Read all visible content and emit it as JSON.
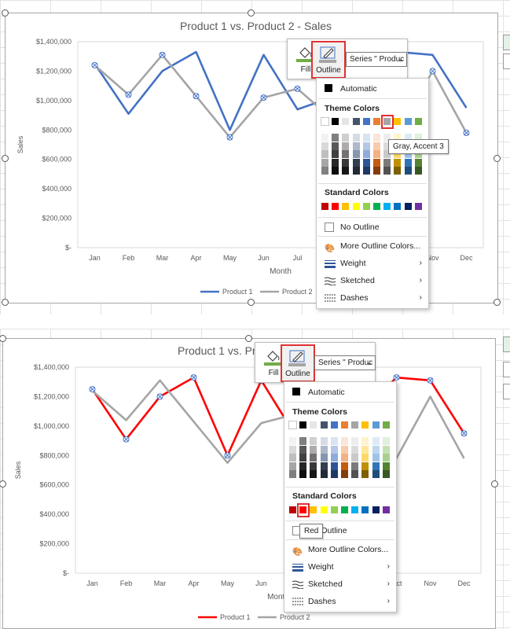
{
  "chart": {
    "title": "Product 1 vs. Product 2 - Sales",
    "ylabel": "Sales",
    "xlabel": "Month",
    "months": [
      "Jan",
      "Feb",
      "Mar",
      "Apr",
      "May",
      "Jun",
      "Jul",
      "Aug",
      "Sep",
      "Oct",
      "Nov",
      "Dec"
    ],
    "yticks": [
      "$1,400,000",
      "$1,200,000",
      "$1,000,000",
      "$800,000",
      "$600,000",
      "$400,000",
      "$200,000",
      "$-"
    ]
  },
  "chart_data": [
    {
      "type": "line",
      "title": "Product 1 vs. Product 2 - Sales",
      "xlabel": "Month",
      "ylabel": "Sales",
      "ylim": [
        0,
        1400000
      ],
      "categories": [
        "Jan",
        "Feb",
        "Mar",
        "Apr",
        "May",
        "Jun",
        "Jul",
        "Aug",
        "Sep",
        "Oct",
        "Nov",
        "Dec"
      ],
      "series": [
        {
          "name": "Product 1",
          "color": "#4472c4",
          "values": [
            1250000,
            910000,
            1200000,
            1330000,
            800000,
            1310000,
            940000,
            1020000,
            1100000,
            1330000,
            1310000,
            950000
          ]
        },
        {
          "name": "Product 2",
          "color": "#a5a5a5",
          "values": [
            1240000,
            1040000,
            1310000,
            1030000,
            750000,
            1020000,
            1080000,
            880000,
            950000,
            780000,
            1200000,
            780000
          ]
        }
      ],
      "legend": "bottom",
      "grid": false
    },
    {
      "type": "line",
      "title": "Product 1 vs. Product 2 - Sales",
      "xlabel": "Month",
      "ylabel": "Sales",
      "ylim": [
        0,
        1400000
      ],
      "categories": [
        "Jan",
        "Feb",
        "Mar",
        "Apr",
        "May",
        "Jun",
        "Jul",
        "Aug",
        "Sep",
        "Oct",
        "Nov",
        "Dec"
      ],
      "series": [
        {
          "name": "Product 1",
          "color": "#ff0000",
          "values": [
            1250000,
            910000,
            1200000,
            1330000,
            800000,
            1310000,
            940000,
            1020000,
            1100000,
            1330000,
            1310000,
            950000
          ]
        },
        {
          "name": "Product 2",
          "color": "#a5a5a5",
          "values": [
            1240000,
            1040000,
            1310000,
            1030000,
            750000,
            1020000,
            1080000,
            880000,
            950000,
            780000,
            1200000,
            780000
          ]
        }
      ],
      "legend": "bottom",
      "grid": false
    }
  ],
  "toolbar": {
    "fill_label": "Fill",
    "outline_label": "Outline",
    "series_label": "Series \" Produc"
  },
  "menu": {
    "automatic": "Automatic",
    "theme_colors": "Theme Colors",
    "standard_colors": "Standard Colors",
    "no_outline": "No Outline",
    "more_colors": "More Outline Colors...",
    "weight": "Weight",
    "sketched": "Sketched",
    "dashes": "Dashes"
  },
  "tooltips": {
    "panel1": "Gray, Accent 3",
    "panel2": "Red"
  },
  "colors": {
    "theme_top": [
      "#ffffff",
      "#000000",
      "#e7e6e6",
      "#44546a",
      "#4472c4",
      "#ed7d31",
      "#a5a5a5",
      "#ffc000",
      "#5b9bd5",
      "#70ad47"
    ],
    "theme_shades": [
      [
        "#f2f2f2",
        "#d9d9d9",
        "#bfbfbf",
        "#a6a6a6",
        "#808080"
      ],
      [
        "#7f7f7f",
        "#595959",
        "#404040",
        "#262626",
        "#0d0d0d"
      ],
      [
        "#d0cece",
        "#aeabab",
        "#757171",
        "#3b3838",
        "#161616"
      ],
      [
        "#d6dce4",
        "#adb9ca",
        "#8496b0",
        "#333f4f",
        "#222a35"
      ],
      [
        "#dae3f3",
        "#b4c7e7",
        "#8faadc",
        "#2f5597",
        "#203864"
      ],
      [
        "#fbe5d6",
        "#f8cbad",
        "#f4b183",
        "#c55a11",
        "#843c0c"
      ],
      [
        "#ededed",
        "#dbdbdb",
        "#c9c9c9",
        "#7b7b7b",
        "#525252"
      ],
      [
        "#fff2cc",
        "#ffe699",
        "#ffd966",
        "#bf9000",
        "#7f6000"
      ],
      [
        "#deebf7",
        "#bdd7ee",
        "#9dc3e6",
        "#2e75b6",
        "#1f4e79"
      ],
      [
        "#e2f0d9",
        "#c5e0b4",
        "#a9d18e",
        "#548235",
        "#385723"
      ]
    ],
    "standard": [
      "#c00000",
      "#ff0000",
      "#ffc000",
      "#ffff00",
      "#92d050",
      "#00b050",
      "#00b0f0",
      "#0070c0",
      "#002060",
      "#7030a0"
    ]
  }
}
